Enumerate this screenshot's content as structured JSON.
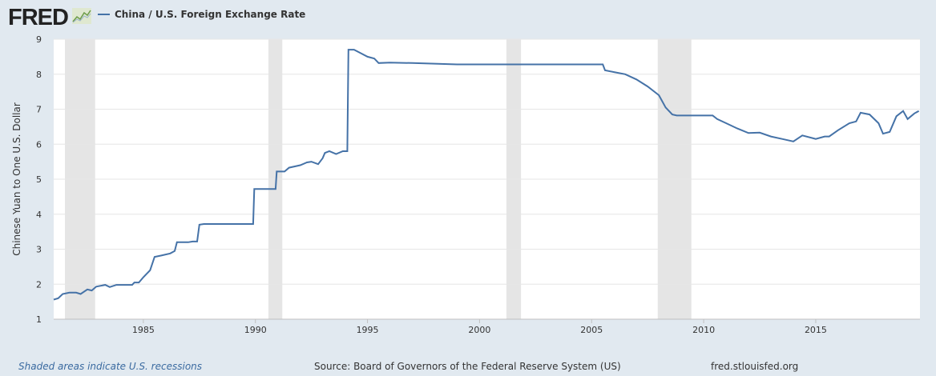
{
  "logo": "FRED",
  "legend": {
    "label": "China / U.S. Foreign Exchange Rate",
    "color": "#4572a7"
  },
  "footer": {
    "note": "Shaded areas indicate U.S. recessions",
    "source": "Source: Board of Governors of the Federal Reserve System (US)",
    "site": "fred.stlouisfed.org"
  },
  "chart_data": {
    "type": "line",
    "title": "China / U.S. Foreign Exchange Rate",
    "ylabel": "Chinese Yuan to One U.S. Dollar",
    "xlabel": "",
    "xlim": [
      1981.0,
      2019.65
    ],
    "ylim": [
      1,
      9
    ],
    "yticks": [
      1,
      2,
      3,
      4,
      5,
      6,
      7,
      8,
      9
    ],
    "xticks": [
      1985,
      1990,
      1995,
      2000,
      2005,
      2010,
      2015
    ],
    "recessions": [
      [
        1981.5,
        1982.85
      ],
      [
        1990.58,
        1991.2
      ],
      [
        2001.2,
        2001.85
      ],
      [
        2007.95,
        2009.45
      ]
    ],
    "series": [
      {
        "name": "China / U.S. Foreign Exchange Rate",
        "points": [
          [
            1981.0,
            1.56
          ],
          [
            1981.2,
            1.6
          ],
          [
            1981.4,
            1.72
          ],
          [
            1981.7,
            1.76
          ],
          [
            1982.0,
            1.76
          ],
          [
            1982.2,
            1.72
          ],
          [
            1982.5,
            1.85
          ],
          [
            1982.7,
            1.82
          ],
          [
            1982.9,
            1.93
          ],
          [
            1983.3,
            1.98
          ],
          [
            1983.5,
            1.92
          ],
          [
            1983.8,
            1.98
          ],
          [
            1984.5,
            1.98
          ],
          [
            1984.6,
            2.05
          ],
          [
            1984.8,
            2.05
          ],
          [
            1985.0,
            2.2
          ],
          [
            1985.3,
            2.4
          ],
          [
            1985.5,
            2.78
          ],
          [
            1985.8,
            2.82
          ],
          [
            1986.2,
            2.88
          ],
          [
            1986.4,
            2.95
          ],
          [
            1986.5,
            3.2
          ],
          [
            1987.0,
            3.2
          ],
          [
            1987.2,
            3.22
          ],
          [
            1987.4,
            3.22
          ],
          [
            1987.5,
            3.7
          ],
          [
            1987.7,
            3.72
          ],
          [
            1989.9,
            3.72
          ],
          [
            1989.95,
            4.72
          ],
          [
            1990.9,
            4.72
          ],
          [
            1990.95,
            5.22
          ],
          [
            1991.3,
            5.22
          ],
          [
            1991.5,
            5.33
          ],
          [
            1992.0,
            5.4
          ],
          [
            1992.3,
            5.48
          ],
          [
            1992.5,
            5.5
          ],
          [
            1992.8,
            5.43
          ],
          [
            1993.0,
            5.6
          ],
          [
            1993.1,
            5.75
          ],
          [
            1993.3,
            5.8
          ],
          [
            1993.6,
            5.72
          ],
          [
            1993.9,
            5.8
          ],
          [
            1994.1,
            5.8
          ],
          [
            1994.15,
            8.7
          ],
          [
            1994.4,
            8.7
          ],
          [
            1994.7,
            8.6
          ],
          [
            1995.0,
            8.5
          ],
          [
            1995.3,
            8.45
          ],
          [
            1995.5,
            8.32
          ],
          [
            1996.0,
            8.33
          ],
          [
            1997.0,
            8.32
          ],
          [
            1998.0,
            8.3
          ],
          [
            1999.0,
            8.28
          ],
          [
            2005.5,
            8.28
          ],
          [
            2005.6,
            8.11
          ],
          [
            2006.0,
            8.06
          ],
          [
            2006.5,
            8.0
          ],
          [
            2007.0,
            7.85
          ],
          [
            2007.5,
            7.65
          ],
          [
            2008.0,
            7.4
          ],
          [
            2008.3,
            7.05
          ],
          [
            2008.6,
            6.85
          ],
          [
            2008.8,
            6.82
          ],
          [
            2010.4,
            6.82
          ],
          [
            2010.6,
            6.72
          ],
          [
            2011.0,
            6.6
          ],
          [
            2011.5,
            6.45
          ],
          [
            2012.0,
            6.32
          ],
          [
            2012.5,
            6.33
          ],
          [
            2013.0,
            6.22
          ],
          [
            2013.5,
            6.15
          ],
          [
            2014.0,
            6.08
          ],
          [
            2014.4,
            6.25
          ],
          [
            2015.0,
            6.15
          ],
          [
            2015.4,
            6.22
          ],
          [
            2015.6,
            6.22
          ],
          [
            2016.0,
            6.4
          ],
          [
            2016.5,
            6.6
          ],
          [
            2016.8,
            6.65
          ],
          [
            2017.0,
            6.9
          ],
          [
            2017.4,
            6.85
          ],
          [
            2017.8,
            6.6
          ],
          [
            2018.0,
            6.3
          ],
          [
            2018.3,
            6.35
          ],
          [
            2018.6,
            6.8
          ],
          [
            2018.9,
            6.95
          ],
          [
            2019.1,
            6.72
          ],
          [
            2019.4,
            6.88
          ],
          [
            2019.6,
            6.95
          ]
        ]
      }
    ]
  }
}
